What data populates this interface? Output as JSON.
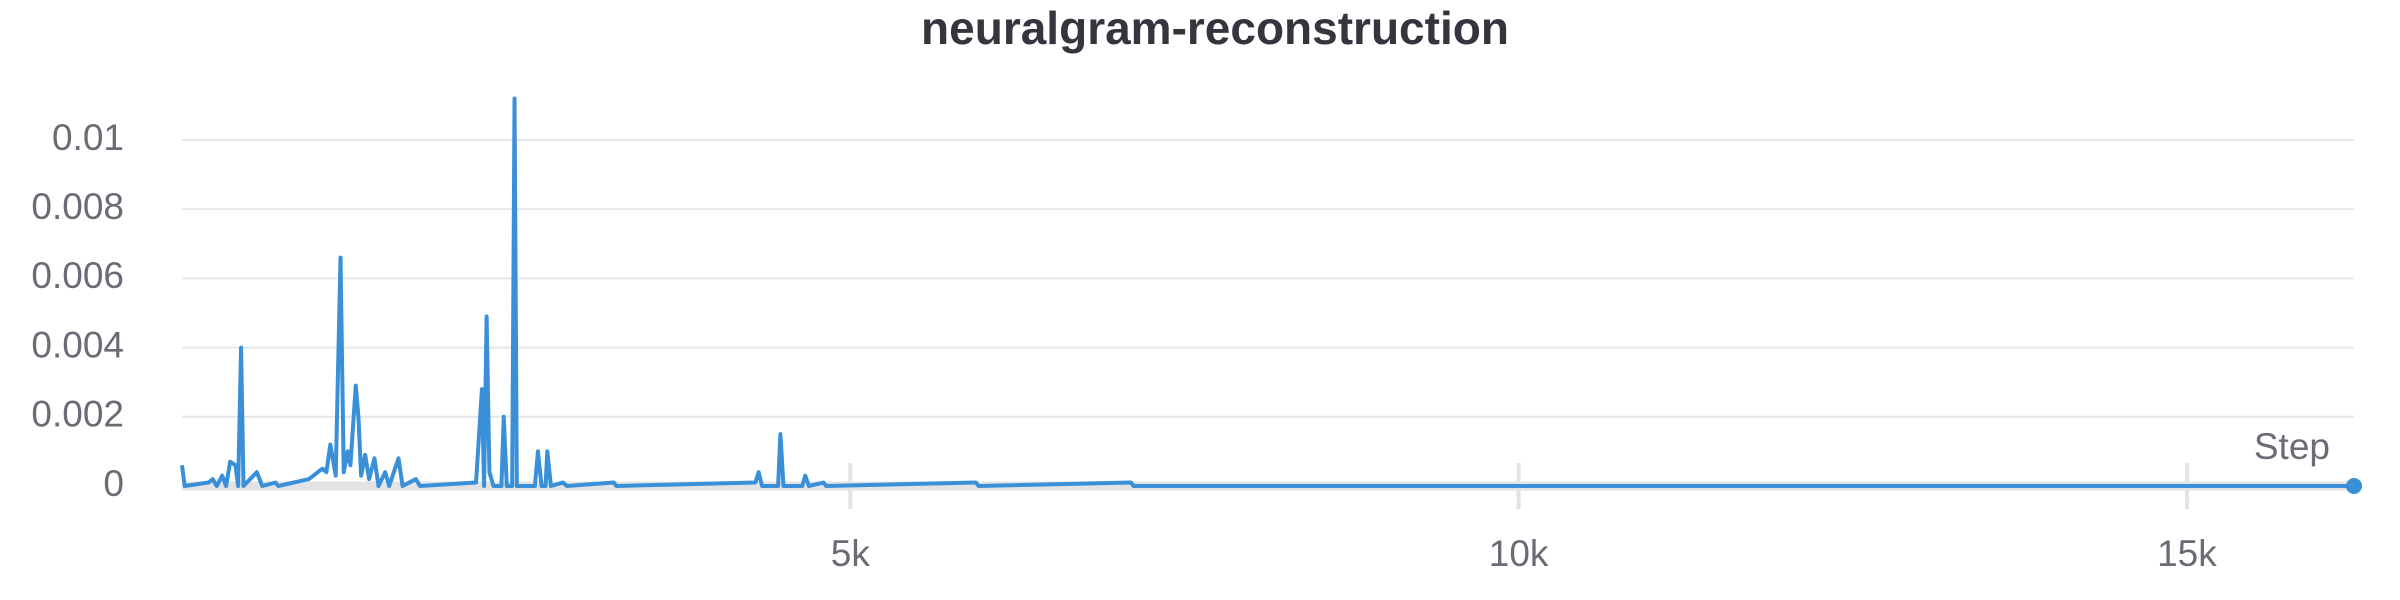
{
  "chart_data": {
    "type": "line",
    "title": "neuralgram-reconstruction",
    "x_label": "Step",
    "x": [
      0,
      20,
      200,
      230,
      260,
      300,
      330,
      360,
      400,
      420,
      442,
      460,
      560,
      600,
      700,
      720,
      950,
      1050,
      1080,
      1110,
      1150,
      1186,
      1210,
      1240,
      1260,
      1300,
      1320,
      1340,
      1370,
      1400,
      1440,
      1470,
      1520,
      1550,
      1620,
      1650,
      1750,
      1780,
      2200,
      2244,
      2260,
      2279,
      2300,
      2330,
      2390,
      2407,
      2430,
      2470,
      2488,
      2505,
      2640,
      2663,
      2690,
      2720,
      2733,
      2760,
      2850,
      2880,
      3230,
      3250,
      4290,
      4314,
      4340,
      4460,
      4477,
      4500,
      4640,
      4663,
      4690,
      4800,
      4820,
      5940,
      5960,
      7100,
      7120,
      16250
    ],
    "series": [
      {
        "color": "#3a8fd9",
        "values": [
          0.0006,
          0,
          0.0001,
          0.0002,
          0,
          0.0003,
          0,
          0.0007,
          0.0006,
          0,
          0.004,
          0,
          0.0004,
          0,
          0.0001,
          0,
          0.0002,
          0.0005,
          0.0004,
          0.0012,
          0.0003,
          0.0066,
          0.0004,
          0.001,
          0.0006,
          0.0029,
          0.002,
          0.0003,
          0.0009,
          0.0002,
          0.0008,
          0,
          0.0004,
          0,
          0.0008,
          0,
          0.0002,
          0,
          0.0001,
          0.0028,
          0,
          0.0049,
          0.0004,
          0,
          0,
          0.002,
          0,
          0,
          0.0112,
          0,
          0,
          0.001,
          0,
          0,
          0.001,
          0,
          0.0001,
          0,
          0.0001,
          0,
          0.0001,
          0.0004,
          0,
          0,
          0.0015,
          0,
          0,
          0.0003,
          0,
          0.0001,
          0,
          0.0001,
          0,
          0.0001,
          0,
          0
        ]
      }
    ],
    "xlim": [
      0,
      16250
    ],
    "ylim": [
      0,
      0.0113
    ],
    "xticks": [
      {
        "value": 5000,
        "label": "5k"
      },
      {
        "value": 10000,
        "label": "10k"
      },
      {
        "value": 15000,
        "label": "15k"
      }
    ],
    "yticks": [
      0,
      0.002,
      0.004,
      0.006,
      0.008,
      0.01
    ],
    "grid": true
  }
}
